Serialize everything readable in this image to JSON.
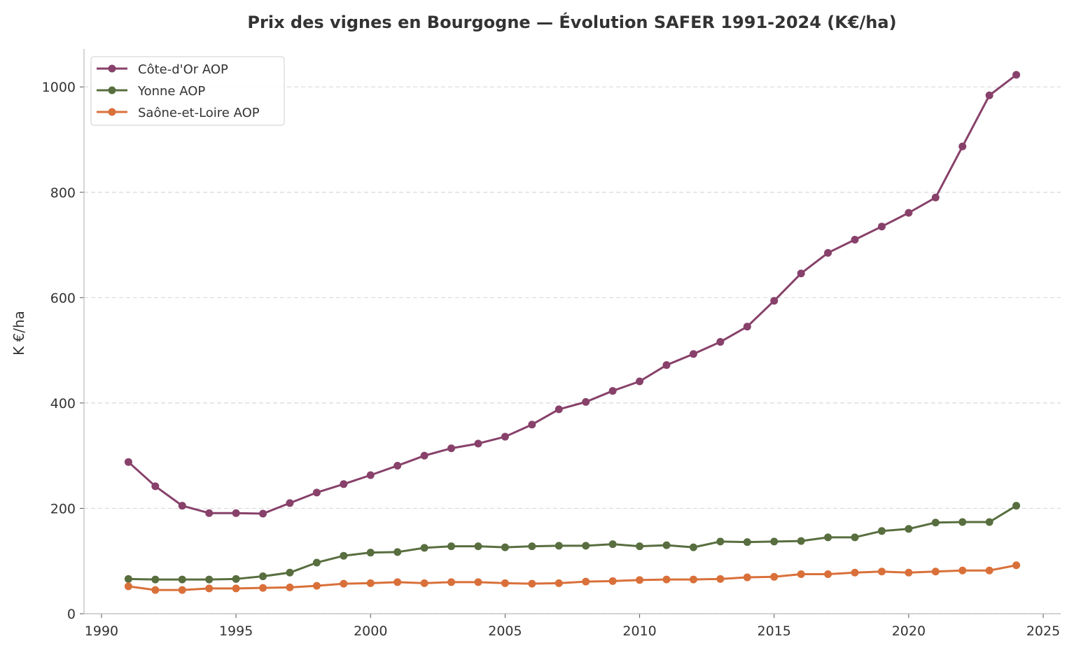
{
  "chart_data": {
    "type": "line",
    "title": "Prix des vignes en Bourgogne — Évolution SAFER 1991-2024 (K€/ha)",
    "xlabel": "",
    "ylabel": "K €/ha",
    "xlim": [
      1989.35,
      2025.65
    ],
    "ylim": [
      0,
      1072
    ],
    "xticks": [
      1990,
      1995,
      2000,
      2005,
      2010,
      2015,
      2020,
      2025
    ],
    "yticks": [
      0,
      200,
      400,
      600,
      800,
      1000
    ],
    "grid": "y-dashed",
    "legend_position": "top-left",
    "x": [
      1991,
      1992,
      1993,
      1994,
      1995,
      1996,
      1997,
      1998,
      1999,
      2000,
      2001,
      2002,
      2003,
      2004,
      2005,
      2006,
      2007,
      2008,
      2009,
      2010,
      2011,
      2012,
      2013,
      2014,
      2015,
      2016,
      2017,
      2018,
      2019,
      2020,
      2021,
      2022,
      2023,
      2024
    ],
    "series": [
      {
        "name": "Côte-d'Or AOP",
        "color": "#87416a",
        "values": [
          288,
          242,
          205,
          191,
          191,
          190,
          210,
          230,
          246,
          263,
          281,
          300,
          314,
          323,
          336,
          359,
          388,
          402,
          423,
          441,
          472,
          493,
          516,
          545,
          594,
          646,
          685,
          710,
          735,
          761,
          790,
          887,
          984,
          1023
        ]
      },
      {
        "name": "Yonne AOP",
        "color": "#586e3f",
        "values": [
          66,
          65,
          65,
          65,
          66,
          71,
          78,
          97,
          110,
          116,
          117,
          125,
          128,
          128,
          126,
          128,
          129,
          129,
          132,
          128,
          130,
          126,
          137,
          136,
          137,
          138,
          145,
          145,
          157,
          161,
          173,
          174,
          174,
          205
        ]
      },
      {
        "name": "Saône-et-Loire AOP",
        "color": "#d9703a",
        "values": [
          52,
          45,
          45,
          48,
          48,
          49,
          50,
          53,
          57,
          58,
          60,
          58,
          60,
          60,
          58,
          57,
          58,
          61,
          62,
          64,
          65,
          65,
          66,
          69,
          70,
          75,
          75,
          78,
          80,
          78,
          80,
          82,
          82,
          92
        ]
      }
    ]
  }
}
